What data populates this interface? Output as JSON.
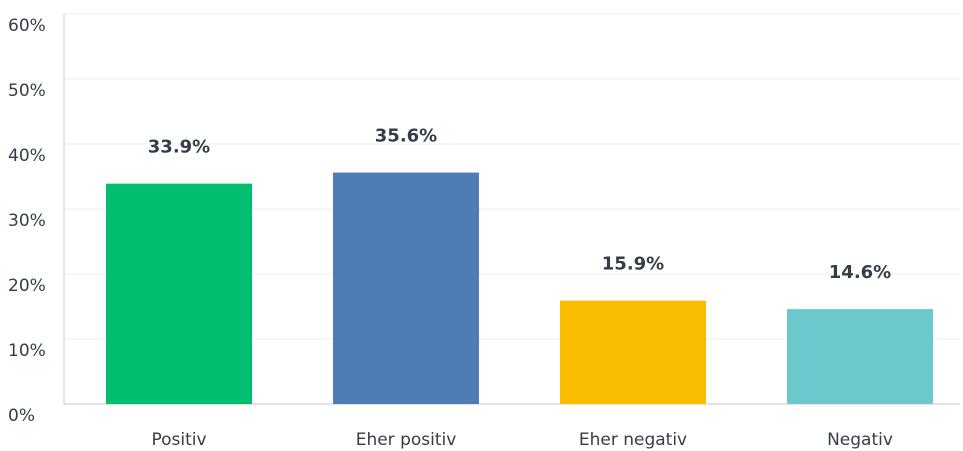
{
  "chart_data": {
    "type": "bar",
    "categories": [
      "Positiv",
      "Eher positiv",
      "Eher negativ",
      "Negativ"
    ],
    "values": [
      33.9,
      35.6,
      15.9,
      14.6
    ],
    "value_labels": [
      "33.9%",
      "35.6%",
      "15.9%",
      "14.6%"
    ],
    "colors": [
      "#00bf6f",
      "#507cb6",
      "#f9be00",
      "#6bc8cd"
    ],
    "ylim": [
      0,
      60
    ],
    "yticks": [
      {
        "value": 0,
        "label": "0%"
      },
      {
        "value": 10,
        "label": "10%"
      },
      {
        "value": 20,
        "label": "20%"
      },
      {
        "value": 30,
        "label": "30%"
      },
      {
        "value": 40,
        "label": "40%"
      },
      {
        "value": 50,
        "label": "50%"
      },
      {
        "value": 60,
        "label": "60%"
      }
    ],
    "grid": true
  }
}
